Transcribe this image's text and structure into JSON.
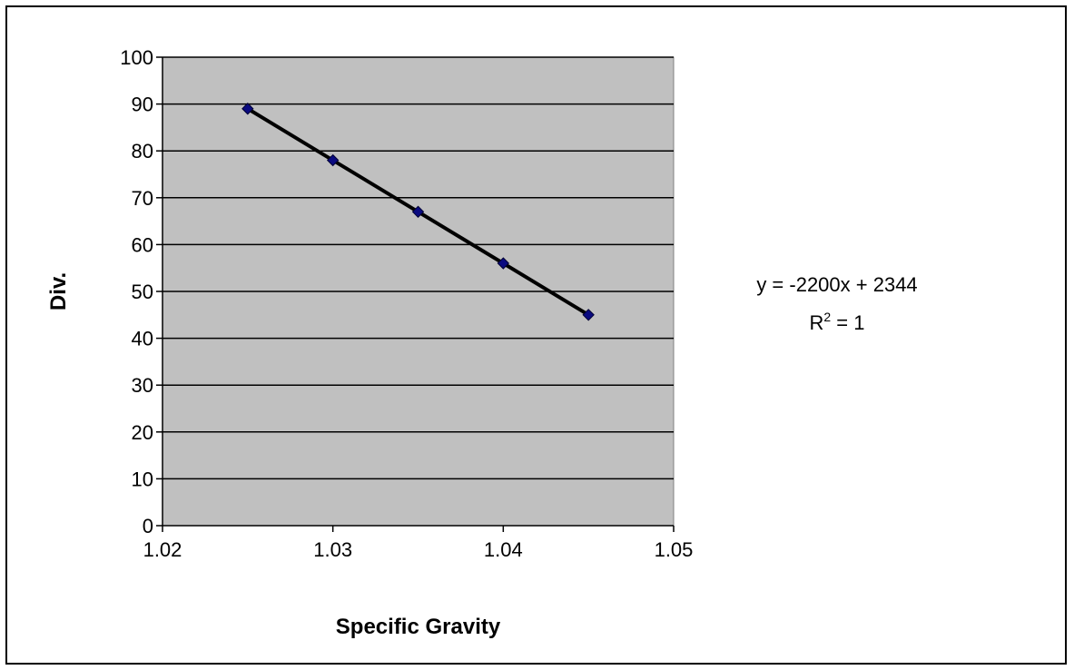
{
  "chart_data": {
    "type": "scatter",
    "title": "",
    "xlabel": "Specific Gravity",
    "ylabel": "Div.",
    "xlim": [
      1.02,
      1.05
    ],
    "ylim": [
      0,
      100
    ],
    "x_ticks": [
      "1.02",
      "1.03",
      "1.04",
      "1.05"
    ],
    "y_ticks": [
      "0",
      "10",
      "20",
      "30",
      "40",
      "50",
      "60",
      "70",
      "80",
      "90",
      "100"
    ],
    "grid": "horizontal",
    "legend": "none",
    "series": [
      {
        "x": [
          1.025,
          1.03,
          1.035,
          1.04,
          1.045
        ],
        "y": [
          89,
          78,
          67,
          56,
          45
        ],
        "marker": "diamond",
        "marker_color": "#0a0a80"
      }
    ],
    "trendline": {
      "type": "linear",
      "slope": -2200,
      "intercept": 2344,
      "equation_prefix": "y = -2200x + 2344",
      "r2_base": "R",
      "r2_exp": "2",
      "r2_suffix": " = 1",
      "color": "#000000"
    },
    "plot_background": "#c0c0c0"
  }
}
